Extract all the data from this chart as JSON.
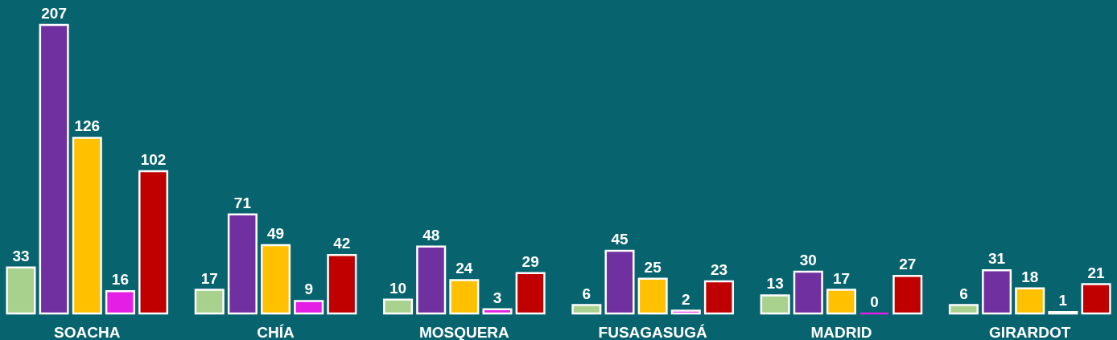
{
  "chart_data": {
    "type": "bar",
    "categories": [
      "SOACHA",
      "CHÍA",
      "MOSQUERA",
      "FUSAGASUGÁ",
      "MADRID",
      "GIRARDOT"
    ],
    "series": [
      {
        "color": "#a9d18e",
        "values": [
          33,
          17,
          10,
          6,
          13,
          6
        ]
      },
      {
        "color": "#7030a0",
        "values": [
          207,
          71,
          48,
          45,
          30,
          31
        ]
      },
      {
        "color": "#ffc000",
        "values": [
          126,
          49,
          24,
          25,
          17,
          18
        ]
      },
      {
        "color": "#e41ee4",
        "values": [
          16,
          9,
          3,
          2,
          0,
          1
        ]
      },
      {
        "color": "#c00000",
        "values": [
          102,
          42,
          29,
          23,
          27,
          21
        ]
      }
    ],
    "data_labels": true,
    "legend": false,
    "grid": false
  }
}
